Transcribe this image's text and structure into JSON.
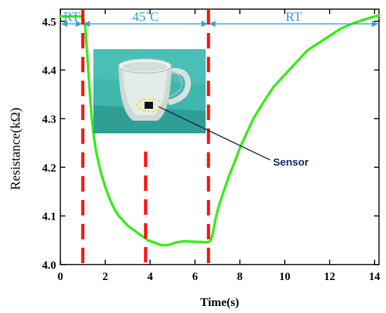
{
  "chart_data": {
    "type": "line",
    "xlabel": "Time(s)",
    "ylabel": "Resistance(kΩ)",
    "xlim": [
      0,
      14.2
    ],
    "ylim": [
      4.0,
      4.525
    ],
    "x_ticks": [
      "0",
      "2",
      "4",
      "6",
      "8",
      "10",
      "12",
      "14"
    ],
    "x_tick_values": [
      0,
      2,
      4,
      6,
      8,
      10,
      12,
      14
    ],
    "y_ticks": [
      "4.0",
      "4.1",
      "4.2",
      "4.3",
      "4.4",
      "4.5"
    ],
    "y_tick_values": [
      4.0,
      4.1,
      4.2,
      4.3,
      4.4,
      4.5
    ],
    "series": [
      {
        "color": "#33ee11",
        "x": [
          0,
          0.5,
          1.0,
          1.1,
          1.2,
          1.3,
          1.4,
          1.5,
          1.6,
          1.7,
          1.8,
          2.0,
          2.2,
          2.4,
          2.6,
          2.8,
          3.0,
          3.3,
          3.6,
          3.9,
          4.2,
          4.5,
          4.8,
          5.0,
          5.2,
          5.5,
          6.0,
          6.5,
          6.6,
          6.7,
          6.8,
          6.9,
          7.0,
          7.2,
          7.5,
          7.8,
          8.0,
          8.3,
          8.6,
          9.0,
          9.5,
          10.0,
          10.5,
          11.0,
          11.5,
          12.0,
          12.5,
          13.0,
          13.5,
          14.0,
          14.2
        ],
        "y": [
          4.51,
          4.51,
          4.51,
          4.49,
          4.43,
          4.36,
          4.3,
          4.26,
          4.23,
          4.21,
          4.19,
          4.16,
          4.135,
          4.115,
          4.1,
          4.09,
          4.08,
          4.07,
          4.06,
          4.05,
          4.045,
          4.04,
          4.04,
          4.043,
          4.046,
          4.048,
          4.047,
          4.046,
          4.046,
          4.05,
          4.065,
          4.09,
          4.11,
          4.14,
          4.18,
          4.215,
          4.24,
          4.27,
          4.3,
          4.33,
          4.365,
          4.39,
          4.415,
          4.44,
          4.455,
          4.47,
          4.485,
          4.495,
          4.503,
          4.51,
          4.512
        ]
      }
    ],
    "markers": [
      1.0,
      3.8,
      6.6
    ],
    "marker_color": "#ff1111",
    "regions": [
      {
        "label": "RT",
        "from": 0,
        "to": 1.0
      },
      {
        "label": "45˚C",
        "from": 1.0,
        "to": 6.6
      },
      {
        "label": "RT",
        "from": 6.6,
        "to": 14.2
      }
    ],
    "region_color": "#3a9fd8",
    "annotation": {
      "label": "Sensor",
      "color": "#0b2a5e"
    },
    "grid": false
  }
}
